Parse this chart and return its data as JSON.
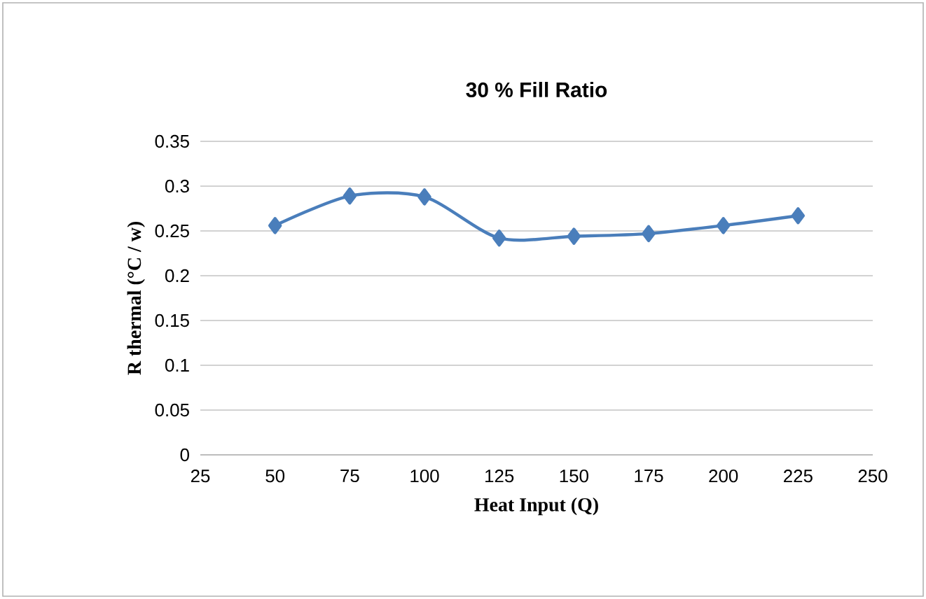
{
  "chart_data": {
    "type": "line",
    "title": "30 % Fill Ratio",
    "xlabel": "Heat Input  (Q)",
    "ylabel": "R thermal  (°C / w)",
    "x": [
      50,
      75,
      100,
      125,
      150,
      175,
      200,
      225
    ],
    "series": [
      {
        "color": "#4a7ebb",
        "values": [
          0.256,
          0.289,
          0.288,
          0.242,
          0.244,
          0.247,
          0.256,
          0.267
        ]
      }
    ],
    "xlim": [
      25,
      250
    ],
    "ylim": [
      0,
      0.35
    ],
    "xticks": [
      25,
      50,
      75,
      100,
      125,
      150,
      175,
      200,
      225,
      250
    ],
    "yticks": [
      0,
      0.05,
      0.1,
      0.15,
      0.2,
      0.25,
      0.3,
      0.35
    ],
    "grid": "y",
    "marker": "diamond",
    "line_style": "solid"
  }
}
